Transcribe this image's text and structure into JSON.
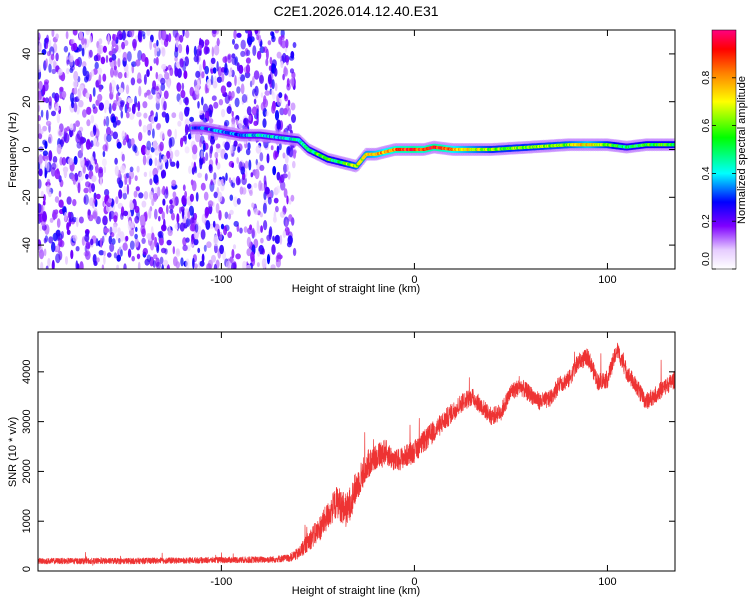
{
  "title": "C2E1.2026.014.12.40.E31",
  "chart_data": [
    {
      "type": "heatmap",
      "name": "spectrogram",
      "xlabel": "Height of straight line (km)",
      "ylabel": "Frequency (Hz)",
      "xlim": [
        -195,
        135
      ],
      "ylim": [
        -50,
        50
      ],
      "xticks": [
        -100,
        0,
        100
      ],
      "xtick_labels": [
        "-100",
        "0",
        "100"
      ],
      "yticks": [
        -40,
        -20,
        0,
        20,
        40
      ],
      "ytick_labels": [
        "-40",
        "-20",
        "0",
        "20",
        "40"
      ],
      "colorbar": {
        "label": "Normalized spectral amplitude",
        "range": [
          0,
          1
        ],
        "ticks": [
          0.0,
          0.2,
          0.4,
          0.6,
          0.8
        ],
        "tick_labels": [
          "0.0",
          "0.2",
          "0.4",
          "0.6",
          "0.8"
        ],
        "colormap": [
          "#ffffff",
          "#e6ccff",
          "#7f00ff",
          "#0000ff",
          "#00ffff",
          "#00ff00",
          "#ffff00",
          "#ff8000",
          "#ff0000",
          "#ff0080"
        ]
      },
      "noise_region": {
        "x_range": [
          -195,
          -62
        ],
        "y_range": [
          -50,
          50
        ],
        "amplitude_range": [
          0.05,
          0.2
        ]
      },
      "signal_ridge": {
        "x": [
          -115,
          -110,
          -90,
          -80,
          -70,
          -60,
          -55,
          -50,
          -45,
          -40,
          -35,
          -30,
          -25,
          -20,
          -15,
          -10,
          0,
          5,
          10,
          20,
          40,
          60,
          80,
          90,
          100,
          110,
          120,
          135
        ],
        "frequency": [
          9,
          9,
          6,
          6,
          5,
          4,
          0,
          -2,
          -4,
          -5,
          -6,
          -7,
          -2,
          -2,
          -1,
          0,
          0,
          0,
          1,
          0,
          0,
          1,
          2,
          2,
          2,
          1,
          2,
          2
        ],
        "amplitude": [
          0.3,
          0.3,
          0.35,
          0.4,
          0.4,
          0.45,
          0.5,
          0.55,
          0.55,
          0.5,
          0.6,
          0.65,
          0.7,
          0.75,
          0.8,
          0.85,
          0.9,
          0.85,
          0.95,
          0.8,
          0.6,
          0.6,
          0.65,
          0.75,
          0.6,
          0.5,
          0.55,
          0.55
        ]
      }
    },
    {
      "type": "line",
      "name": "snr",
      "xlabel": "Height of straight line (km)",
      "ylabel": "SNR (10 * v/v)",
      "xlim": [
        -195,
        135
      ],
      "ylim": [
        0,
        4800
      ],
      "xticks": [
        -100,
        0,
        100
      ],
      "xtick_labels": [
        "-100",
        "0",
        "100"
      ],
      "yticks": [
        0,
        1000,
        2000,
        3000,
        4000
      ],
      "ytick_labels": [
        "0",
        "1000",
        "2000",
        "3000",
        "4000"
      ],
      "series": [
        {
          "name": "SNR",
          "color": "#ee3333",
          "x": [
            -195,
            -150,
            -100,
            -75,
            -65,
            -60,
            -55,
            -50,
            -45,
            -40,
            -35,
            -30,
            -25,
            -20,
            -15,
            -10,
            -5,
            0,
            5,
            10,
            15,
            20,
            25,
            30,
            35,
            40,
            45,
            50,
            55,
            60,
            65,
            70,
            75,
            80,
            85,
            90,
            95,
            100,
            105,
            110,
            115,
            120,
            125,
            130,
            135
          ],
          "y": [
            200,
            200,
            220,
            230,
            260,
            350,
            600,
            800,
            1100,
            1400,
            1200,
            1700,
            2100,
            2300,
            2400,
            2200,
            2300,
            2400,
            2600,
            2800,
            3000,
            3200,
            3400,
            3500,
            3300,
            3100,
            3200,
            3600,
            3700,
            3550,
            3400,
            3450,
            3750,
            3850,
            4200,
            4300,
            3800,
            3850,
            4450,
            4000,
            3700,
            3400,
            3550,
            3700,
            3850
          ],
          "noise_amplitude": [
            120,
            120,
            120,
            130,
            150,
            250,
            400,
            500,
            550,
            650,
            700,
            650,
            600,
            550,
            500,
            450,
            450,
            450,
            450,
            450,
            420,
            400,
            380,
            350,
            350,
            350,
            350,
            350,
            350,
            350,
            350,
            350,
            350,
            350,
            350,
            350,
            350,
            350,
            350,
            350,
            350,
            350,
            350,
            350,
            350
          ]
        }
      ]
    }
  ]
}
